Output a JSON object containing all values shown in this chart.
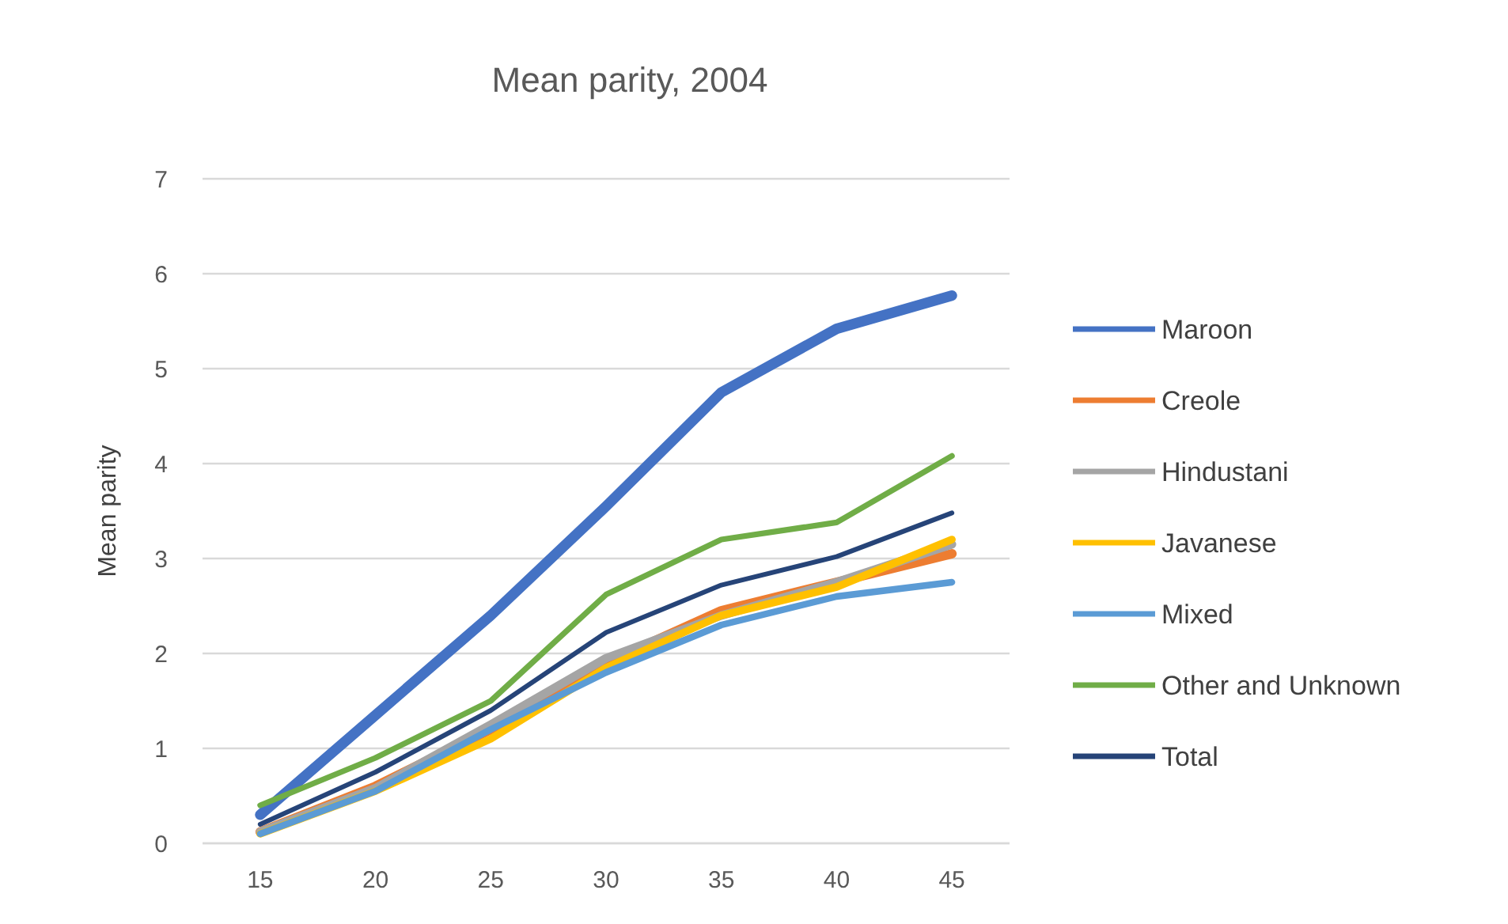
{
  "chart_data": {
    "type": "line",
    "title": "Mean parity, 2004",
    "ylabel": "Mean parity",
    "x": [
      15,
      20,
      25,
      30,
      35,
      40,
      45
    ],
    "xlim": [
      12.5,
      47.5
    ],
    "xticks": [
      15,
      20,
      25,
      30,
      35,
      40,
      45
    ],
    "ylim": [
      0,
      7
    ],
    "yticks": [
      0,
      1,
      2,
      3,
      4,
      5,
      6,
      7
    ],
    "grid": "y",
    "legend": "right",
    "marker": "none",
    "line_style": "solid",
    "series": [
      {
        "name": "Maroon",
        "color": "#4472c4",
        "values": [
          0.3,
          1.35,
          2.4,
          3.55,
          4.75,
          5.42,
          5.77
        ]
      },
      {
        "name": "Creole",
        "color": "#ed7d31",
        "values": [
          0.12,
          0.6,
          1.2,
          1.9,
          2.45,
          2.75,
          3.05
        ]
      },
      {
        "name": "Hindustani",
        "color": "#a5a5a5",
        "values": [
          0.12,
          0.58,
          1.25,
          1.95,
          2.4,
          2.75,
          3.15
        ]
      },
      {
        "name": "Javanese",
        "color": "#ffc000",
        "values": [
          0.1,
          0.55,
          1.1,
          1.85,
          2.4,
          2.7,
          3.2
        ]
      },
      {
        "name": "Mixed",
        "color": "#5b9bd5",
        "values": [
          0.1,
          0.55,
          1.2,
          1.8,
          2.3,
          2.6,
          2.75
        ]
      },
      {
        "name": "Other and Unknown",
        "color": "#70ad47",
        "values": [
          0.4,
          0.9,
          1.5,
          2.62,
          3.2,
          3.38,
          4.08
        ]
      },
      {
        "name": "Total",
        "color": "#264478",
        "values": [
          0.2,
          0.75,
          1.4,
          2.22,
          2.72,
          3.02,
          3.48
        ]
      }
    ]
  }
}
